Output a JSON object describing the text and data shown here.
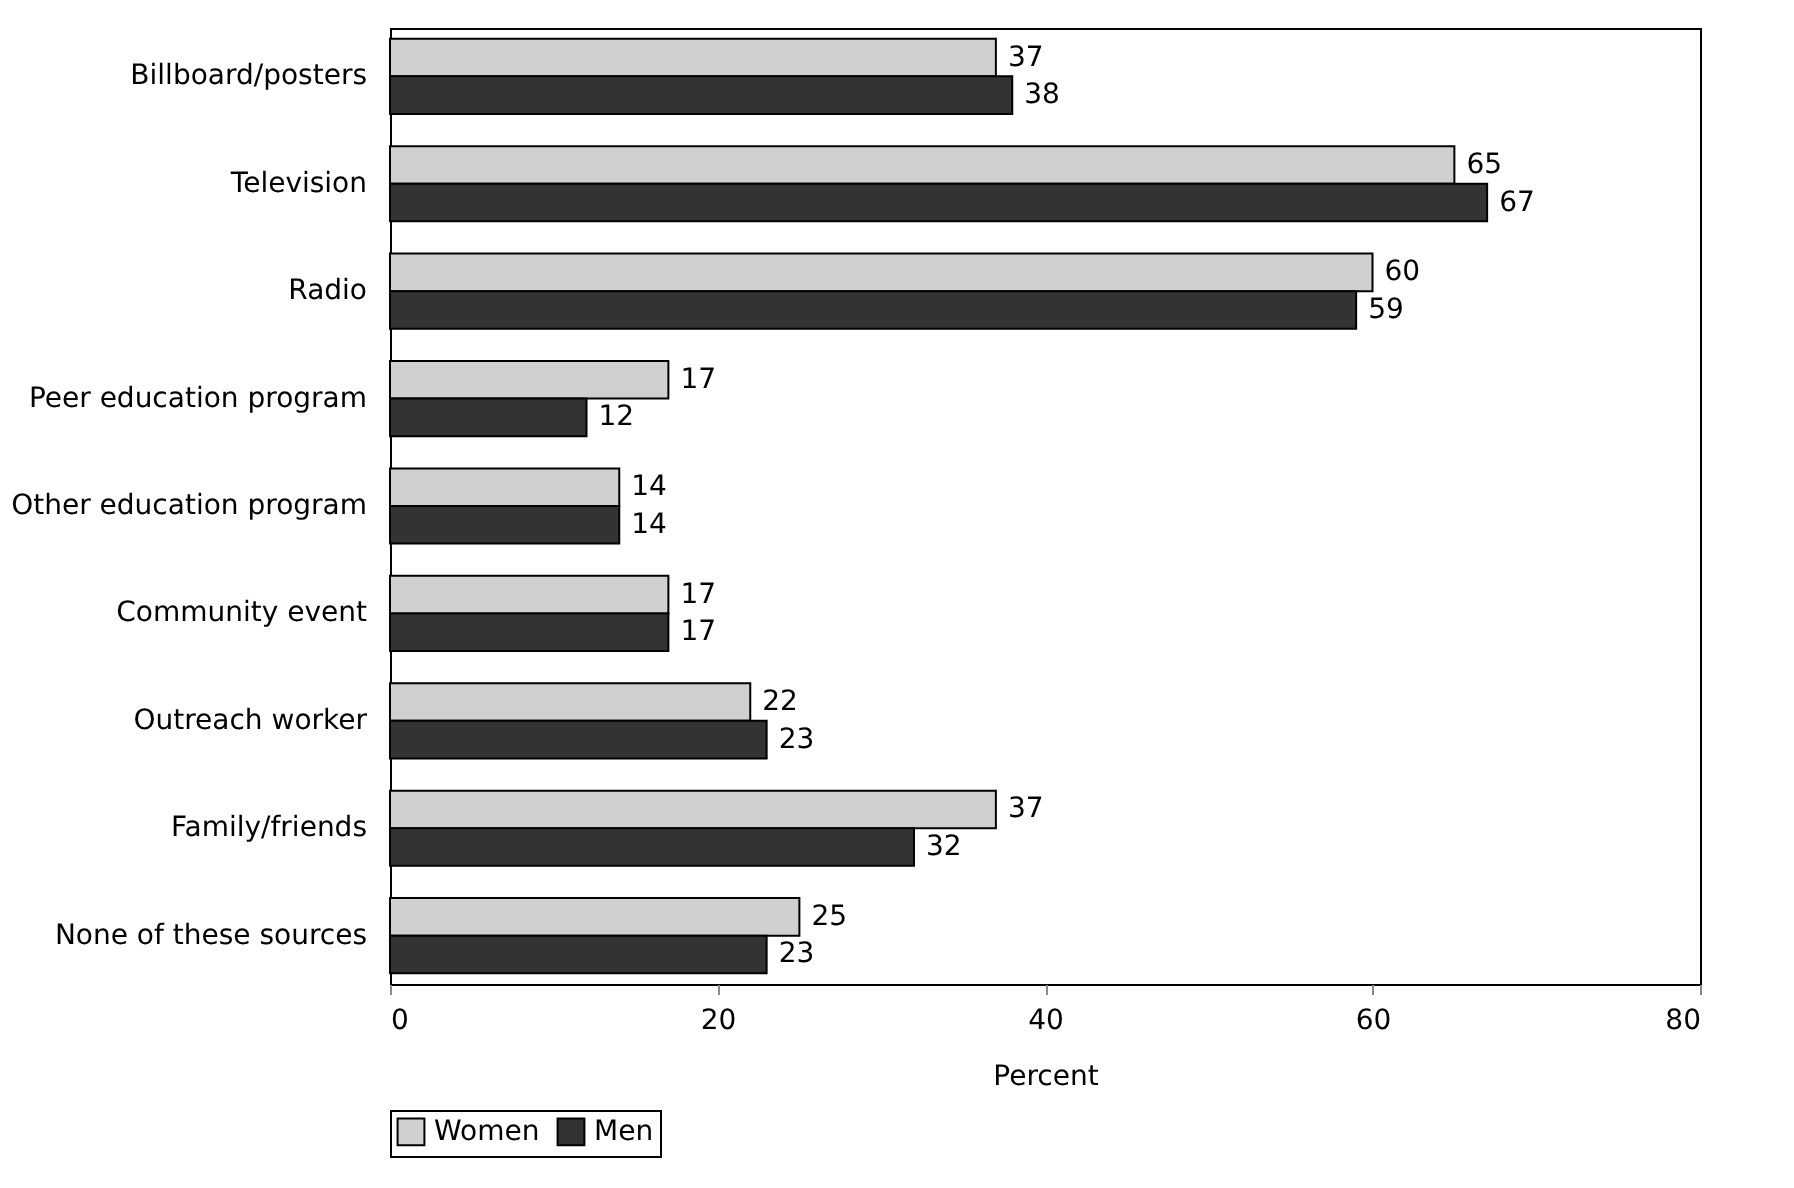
{
  "chart_data": {
    "type": "bar",
    "orientation": "horizontal",
    "xlabel": "Percent",
    "categories": [
      "Billboard/posters",
      "Television",
      "Radio",
      "Peer education program",
      "Other education program",
      "Community event",
      "Outreach worker",
      "Family/friends",
      "None of these sources"
    ],
    "series": [
      {
        "name": "Women",
        "color": "#d0d0d0",
        "values": [
          37,
          65,
          60,
          17,
          14,
          17,
          22,
          37,
          25
        ]
      },
      {
        "name": "Men",
        "color": "#333333",
        "values": [
          38,
          67,
          59,
          12,
          14,
          17,
          23,
          32,
          23
        ]
      }
    ],
    "xlim": [
      0,
      80
    ],
    "xticks": [
      0,
      20,
      40,
      60,
      80
    ],
    "grid": false,
    "legend": "bottom",
    "data_labels": true
  }
}
